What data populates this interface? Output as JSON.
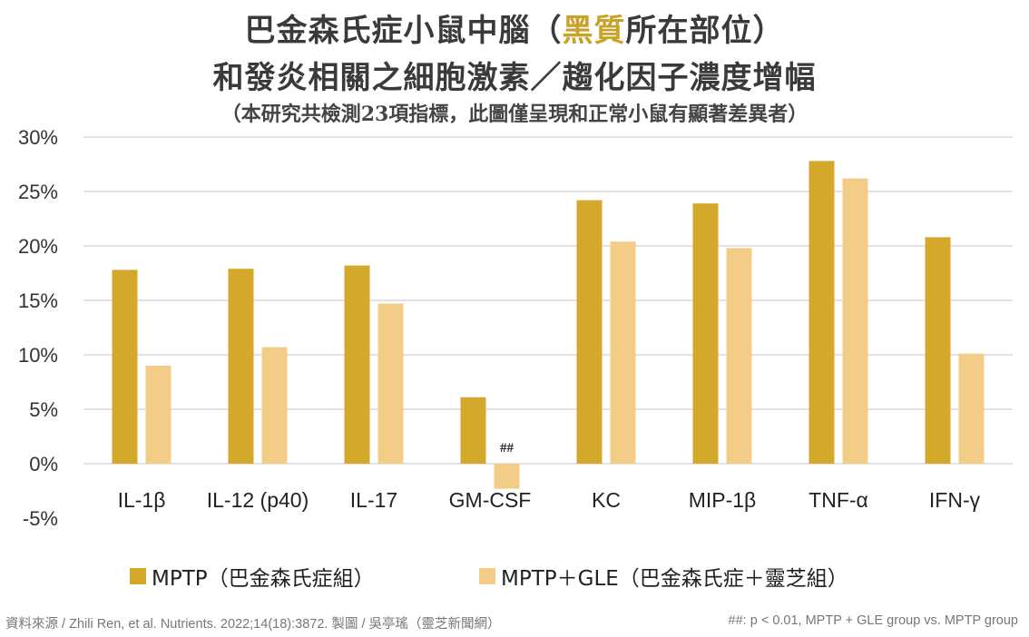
{
  "title_line1": {
    "before": "巴金森氏症小鼠中腦（",
    "highlight": "黑質",
    "after": "所在部位）"
  },
  "title_line2": "和發炎相關之細胞激素／趨化因子濃度增幅",
  "subtitle": "（本研究共檢測23項指標，此圖僅呈現和正常小鼠有顯著差異者）",
  "colors": {
    "mptp": "#d4a82b",
    "mptp_gle": "#f3cd88",
    "highlight_title": "#c9a227",
    "highlight_category": "#b3141b",
    "gridline": "#d9d9d9"
  },
  "chart_data": {
    "type": "bar",
    "title": "巴金森氏症小鼠中腦（黑質所在部位）和發炎相關之細胞激素／趨化因子濃度增幅",
    "categories": [
      "IL-1β",
      "IL-12 (p40)",
      "IL-17",
      "GM-CSF",
      "KC",
      "MIP-1β",
      "TNF-α",
      "IFN-γ"
    ],
    "highlight_category": "GM-CSF",
    "series": [
      {
        "name": "MPTP（巴金森氏症組）",
        "values": [
          17.8,
          17.9,
          18.2,
          6.1,
          24.2,
          23.9,
          27.8,
          20.8
        ]
      },
      {
        "name": "MPTP＋GLE（巴金森氏症＋靈芝組）",
        "values": [
          9.0,
          10.7,
          14.7,
          -2.3,
          20.4,
          19.8,
          26.2,
          10.1
        ]
      }
    ],
    "yticks": [
      "30%",
      "25%",
      "20%",
      "15%",
      "10%",
      "5%",
      "0%",
      "-5%"
    ],
    "ytick_values": [
      30,
      25,
      20,
      15,
      10,
      5,
      0,
      -5
    ],
    "ylim": [
      -5,
      30
    ],
    "xlabel": "",
    "ylabel": "",
    "grid": true,
    "legend_position": "bottom",
    "annotations": [
      {
        "category": "GM-CSF",
        "series": 1,
        "text": "##"
      }
    ]
  },
  "legend": {
    "mptp": "MPTP（巴金森氏症組）",
    "mptp_gle": "MPTP＋GLE（巴金森氏症＋靈芝組）"
  },
  "footer": {
    "source": "資料來源 / Zhili Ren, et al. Nutrients. 2022;14(18):3872.   製圖 / 吳亭瑤（靈芝新聞網）",
    "note": "##: p < 0.01, MPTP + GLE group vs. MPTP group"
  }
}
